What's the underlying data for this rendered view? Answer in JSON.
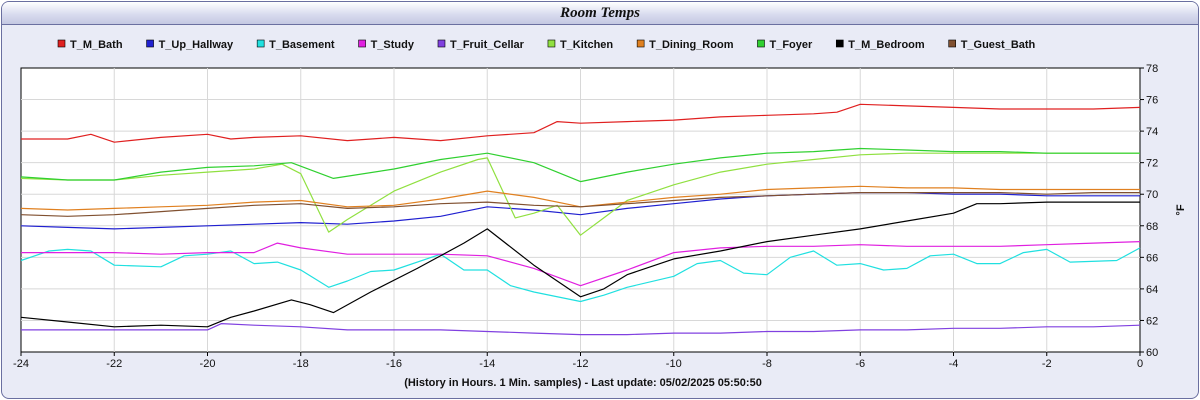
{
  "window": {
    "title": "Room Temps"
  },
  "chart_data": {
    "type": "line",
    "title": "Room Temps",
    "xlabel": "(History in Hours. 1 Min. samples) - Last update: 05/02/2025 05:50:50",
    "ylabel": "°F",
    "xlim": [
      -24,
      0
    ],
    "ylim": [
      60,
      78
    ],
    "x_ticks": [
      -24,
      -22,
      -20,
      -18,
      -16,
      -14,
      -12,
      -10,
      -8,
      -6,
      -4,
      -2,
      0
    ],
    "y_ticks": [
      60,
      62,
      64,
      66,
      68,
      70,
      72,
      74,
      76,
      78
    ],
    "grid": true,
    "legend_position": "top",
    "series": [
      {
        "name": "T_M_Bath",
        "color": "#e02020",
        "points": [
          [
            -24,
            73.5
          ],
          [
            -23,
            73.5
          ],
          [
            -22.5,
            73.8
          ],
          [
            -22,
            73.3
          ],
          [
            -21,
            73.6
          ],
          [
            -20,
            73.8
          ],
          [
            -19.5,
            73.5
          ],
          [
            -19,
            73.6
          ],
          [
            -18,
            73.7
          ],
          [
            -17,
            73.4
          ],
          [
            -16,
            73.6
          ],
          [
            -15,
            73.4
          ],
          [
            -14,
            73.7
          ],
          [
            -13,
            73.9
          ],
          [
            -12.5,
            74.6
          ],
          [
            -12,
            74.5
          ],
          [
            -11,
            74.6
          ],
          [
            -10,
            74.7
          ],
          [
            -9,
            74.9
          ],
          [
            -8,
            75.0
          ],
          [
            -7,
            75.1
          ],
          [
            -6.5,
            75.2
          ],
          [
            -6,
            75.7
          ],
          [
            -5,
            75.6
          ],
          [
            -4,
            75.5
          ],
          [
            -3,
            75.4
          ],
          [
            -2,
            75.4
          ],
          [
            -1,
            75.4
          ],
          [
            0,
            75.5
          ]
        ]
      },
      {
        "name": "T_Up_Hallway",
        "color": "#2020d0",
        "points": [
          [
            -24,
            68.0
          ],
          [
            -23,
            67.9
          ],
          [
            -22,
            67.8
          ],
          [
            -21,
            67.9
          ],
          [
            -20,
            68.0
          ],
          [
            -19,
            68.1
          ],
          [
            -18,
            68.2
          ],
          [
            -17,
            68.1
          ],
          [
            -16,
            68.3
          ],
          [
            -15,
            68.6
          ],
          [
            -14,
            69.2
          ],
          [
            -13,
            69.0
          ],
          [
            -12,
            68.7
          ],
          [
            -11,
            69.1
          ],
          [
            -10,
            69.4
          ],
          [
            -9,
            69.7
          ],
          [
            -8,
            69.9
          ],
          [
            -7,
            70.0
          ],
          [
            -6,
            70.1
          ],
          [
            -5,
            70.1
          ],
          [
            -4,
            70.0
          ],
          [
            -3,
            70.0
          ],
          [
            -2,
            69.9
          ],
          [
            -1,
            69.9
          ],
          [
            0,
            69.9
          ]
        ]
      },
      {
        "name": "T_Basement",
        "color": "#20e0e0",
        "points": [
          [
            -24,
            65.8
          ],
          [
            -23.4,
            66.4
          ],
          [
            -23,
            66.5
          ],
          [
            -22.5,
            66.4
          ],
          [
            -22,
            65.5
          ],
          [
            -21,
            65.4
          ],
          [
            -20.5,
            66.1
          ],
          [
            -20,
            66.2
          ],
          [
            -19.5,
            66.4
          ],
          [
            -19,
            65.6
          ],
          [
            -18.5,
            65.7
          ],
          [
            -18,
            65.2
          ],
          [
            -17.4,
            64.1
          ],
          [
            -17,
            64.5
          ],
          [
            -16.5,
            65.1
          ],
          [
            -16,
            65.2
          ],
          [
            -15,
            66.2
          ],
          [
            -14.5,
            65.2
          ],
          [
            -14,
            65.2
          ],
          [
            -13.5,
            64.2
          ],
          [
            -13,
            63.8
          ],
          [
            -12,
            63.2
          ],
          [
            -11.5,
            63.6
          ],
          [
            -11,
            64.1
          ],
          [
            -10,
            64.8
          ],
          [
            -9.5,
            65.6
          ],
          [
            -9,
            65.8
          ],
          [
            -8.5,
            65.0
          ],
          [
            -8,
            64.9
          ],
          [
            -7.5,
            66.0
          ],
          [
            -7,
            66.4
          ],
          [
            -6.5,
            65.5
          ],
          [
            -6,
            65.6
          ],
          [
            -5.5,
            65.2
          ],
          [
            -5,
            65.3
          ],
          [
            -4.5,
            66.1
          ],
          [
            -4,
            66.2
          ],
          [
            -3.5,
            65.6
          ],
          [
            -3,
            65.6
          ],
          [
            -2.5,
            66.3
          ],
          [
            -2,
            66.5
          ],
          [
            -1.5,
            65.7
          ],
          [
            -0.5,
            65.8
          ],
          [
            0,
            66.6
          ]
        ]
      },
      {
        "name": "T_Study",
        "color": "#e020e0",
        "points": [
          [
            -24,
            66.3
          ],
          [
            -23,
            66.3
          ],
          [
            -22,
            66.3
          ],
          [
            -21,
            66.2
          ],
          [
            -20,
            66.3
          ],
          [
            -19,
            66.3
          ],
          [
            -18.5,
            66.9
          ],
          [
            -18,
            66.6
          ],
          [
            -17,
            66.2
          ],
          [
            -16,
            66.2
          ],
          [
            -15,
            66.2
          ],
          [
            -14,
            66.1
          ],
          [
            -13,
            65.3
          ],
          [
            -12,
            64.2
          ],
          [
            -11,
            65.2
          ],
          [
            -10,
            66.3
          ],
          [
            -9,
            66.6
          ],
          [
            -8,
            66.7
          ],
          [
            -7,
            66.7
          ],
          [
            -6,
            66.8
          ],
          [
            -5,
            66.7
          ],
          [
            -4,
            66.7
          ],
          [
            -3,
            66.7
          ],
          [
            -2,
            66.8
          ],
          [
            -1,
            66.9
          ],
          [
            0,
            67.0
          ]
        ]
      },
      {
        "name": "T_Fruit_Cellar",
        "color": "#8040e0",
        "points": [
          [
            -24,
            61.4
          ],
          [
            -22,
            61.4
          ],
          [
            -21,
            61.4
          ],
          [
            -20,
            61.4
          ],
          [
            -19.7,
            61.8
          ],
          [
            -19,
            61.7
          ],
          [
            -18,
            61.6
          ],
          [
            -17,
            61.4
          ],
          [
            -16,
            61.4
          ],
          [
            -15,
            61.4
          ],
          [
            -14,
            61.3
          ],
          [
            -13,
            61.2
          ],
          [
            -12,
            61.1
          ],
          [
            -11,
            61.1
          ],
          [
            -10,
            61.2
          ],
          [
            -9,
            61.2
          ],
          [
            -8,
            61.3
          ],
          [
            -7,
            61.3
          ],
          [
            -6,
            61.4
          ],
          [
            -5,
            61.4
          ],
          [
            -4,
            61.5
          ],
          [
            -3,
            61.5
          ],
          [
            -2,
            61.6
          ],
          [
            -1,
            61.6
          ],
          [
            0,
            61.7
          ]
        ]
      },
      {
        "name": "T_Kitchen",
        "color": "#90e040",
        "points": [
          [
            -24,
            71.0
          ],
          [
            -23,
            70.9
          ],
          [
            -22,
            70.9
          ],
          [
            -21,
            71.2
          ],
          [
            -20,
            71.4
          ],
          [
            -19,
            71.6
          ],
          [
            -18.4,
            71.9
          ],
          [
            -18,
            71.3
          ],
          [
            -17.4,
            67.6
          ],
          [
            -17,
            68.4
          ],
          [
            -16,
            70.2
          ],
          [
            -15,
            71.4
          ],
          [
            -14.2,
            72.2
          ],
          [
            -14,
            72.3
          ],
          [
            -13.4,
            68.5
          ],
          [
            -13,
            68.8
          ],
          [
            -12.5,
            69.3
          ],
          [
            -12,
            67.4
          ],
          [
            -11.5,
            68.5
          ],
          [
            -11,
            69.6
          ],
          [
            -10,
            70.6
          ],
          [
            -9,
            71.4
          ],
          [
            -8,
            71.9
          ],
          [
            -7,
            72.2
          ],
          [
            -6,
            72.5
          ],
          [
            -5,
            72.6
          ],
          [
            -4,
            72.6
          ],
          [
            -3,
            72.6
          ],
          [
            -2,
            72.6
          ],
          [
            -1,
            72.6
          ],
          [
            0,
            72.6
          ]
        ]
      },
      {
        "name": "T_Dining_Room",
        "color": "#e08020",
        "points": [
          [
            -24,
            69.1
          ],
          [
            -23,
            69.0
          ],
          [
            -22,
            69.1
          ],
          [
            -21,
            69.2
          ],
          [
            -20,
            69.3
          ],
          [
            -19,
            69.5
          ],
          [
            -18,
            69.6
          ],
          [
            -17,
            69.2
          ],
          [
            -16,
            69.3
          ],
          [
            -15,
            69.7
          ],
          [
            -14,
            70.2
          ],
          [
            -13,
            69.8
          ],
          [
            -12,
            69.2
          ],
          [
            -11,
            69.5
          ],
          [
            -10,
            69.8
          ],
          [
            -9,
            70.0
          ],
          [
            -8,
            70.3
          ],
          [
            -7,
            70.4
          ],
          [
            -6,
            70.5
          ],
          [
            -5,
            70.4
          ],
          [
            -4,
            70.4
          ],
          [
            -3,
            70.3
          ],
          [
            -2,
            70.3
          ],
          [
            -1,
            70.3
          ],
          [
            0,
            70.3
          ]
        ]
      },
      {
        "name": "T_Foyer",
        "color": "#30d030",
        "points": [
          [
            -24,
            71.1
          ],
          [
            -23,
            70.9
          ],
          [
            -22,
            70.9
          ],
          [
            -21,
            71.4
          ],
          [
            -20,
            71.7
          ],
          [
            -19,
            71.8
          ],
          [
            -18.2,
            72.0
          ],
          [
            -17.3,
            71.0
          ],
          [
            -16,
            71.6
          ],
          [
            -15,
            72.2
          ],
          [
            -14,
            72.6
          ],
          [
            -13,
            72.0
          ],
          [
            -12,
            70.8
          ],
          [
            -11,
            71.4
          ],
          [
            -10,
            71.9
          ],
          [
            -9,
            72.3
          ],
          [
            -8,
            72.6
          ],
          [
            -7,
            72.7
          ],
          [
            -6,
            72.9
          ],
          [
            -5,
            72.8
          ],
          [
            -4,
            72.7
          ],
          [
            -3,
            72.7
          ],
          [
            -2,
            72.6
          ],
          [
            -1,
            72.6
          ],
          [
            0,
            72.6
          ]
        ]
      },
      {
        "name": "T_M_Bedroom",
        "color": "#000000",
        "points": [
          [
            -24,
            62.2
          ],
          [
            -23,
            61.9
          ],
          [
            -22,
            61.6
          ],
          [
            -21,
            61.7
          ],
          [
            -20,
            61.6
          ],
          [
            -19.5,
            62.2
          ],
          [
            -19,
            62.6
          ],
          [
            -18.2,
            63.3
          ],
          [
            -17.8,
            63.0
          ],
          [
            -17.3,
            62.5
          ],
          [
            -16.5,
            63.8
          ],
          [
            -15.5,
            65.3
          ],
          [
            -14.5,
            66.9
          ],
          [
            -14,
            67.8
          ],
          [
            -13,
            65.5
          ],
          [
            -12,
            63.5
          ],
          [
            -11.5,
            64.0
          ],
          [
            -11,
            64.9
          ],
          [
            -10,
            65.9
          ],
          [
            -9,
            66.4
          ],
          [
            -8,
            67.0
          ],
          [
            -7,
            67.4
          ],
          [
            -6,
            67.8
          ],
          [
            -5,
            68.3
          ],
          [
            -4,
            68.8
          ],
          [
            -3.5,
            69.4
          ],
          [
            -3,
            69.4
          ],
          [
            -2,
            69.5
          ],
          [
            -1,
            69.5
          ],
          [
            0,
            69.5
          ]
        ]
      },
      {
        "name": "T_Guest_Bath",
        "color": "#805030",
        "points": [
          [
            -24,
            68.7
          ],
          [
            -23,
            68.6
          ],
          [
            -22,
            68.7
          ],
          [
            -21,
            68.9
          ],
          [
            -20,
            69.1
          ],
          [
            -19,
            69.3
          ],
          [
            -18,
            69.4
          ],
          [
            -17,
            69.1
          ],
          [
            -16,
            69.2
          ],
          [
            -15,
            69.4
          ],
          [
            -14,
            69.5
          ],
          [
            -13,
            69.3
          ],
          [
            -12,
            69.2
          ],
          [
            -11,
            69.4
          ],
          [
            -10,
            69.6
          ],
          [
            -9,
            69.8
          ],
          [
            -8,
            69.9
          ],
          [
            -7,
            70.0
          ],
          [
            -6,
            70.1
          ],
          [
            -5,
            70.1
          ],
          [
            -4,
            70.1
          ],
          [
            -3,
            70.1
          ],
          [
            -2,
            70.0
          ],
          [
            -1,
            70.1
          ],
          [
            0,
            70.1
          ]
        ]
      }
    ]
  }
}
